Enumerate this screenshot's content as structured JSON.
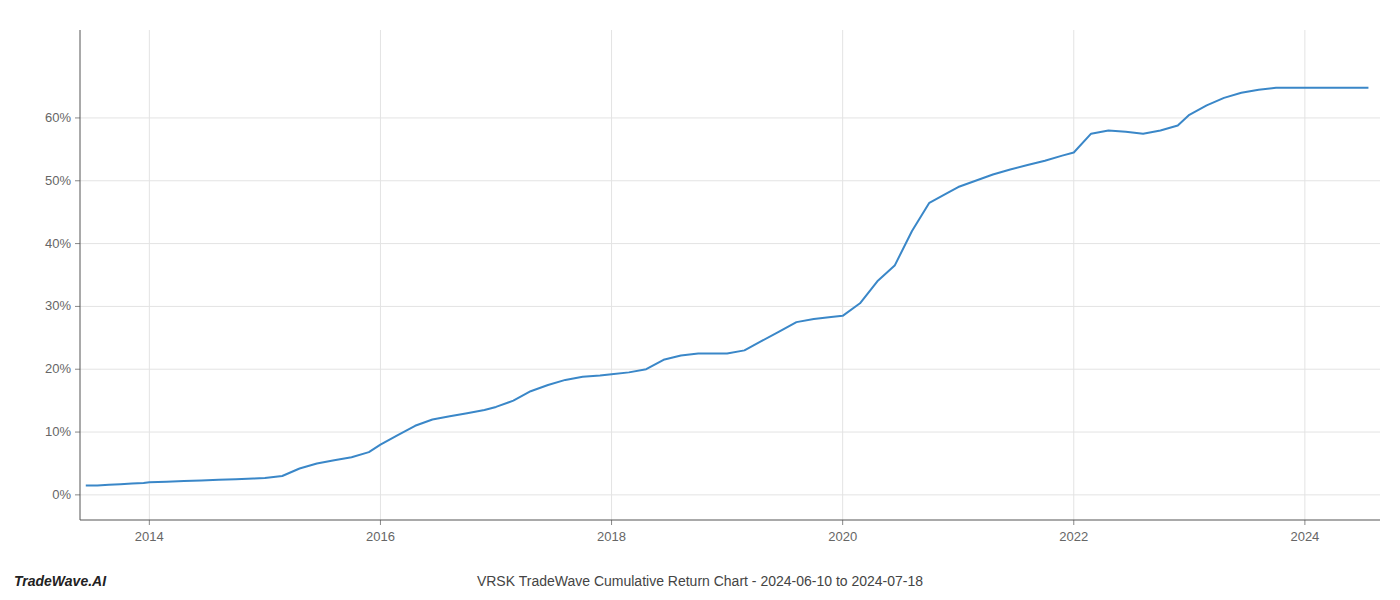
{
  "chart_data": {
    "type": "line",
    "title": "VRSK TradeWave Cumulative Return Chart - 2024-06-10 to 2024-07-18",
    "annotations": [
      "TradeWave.AI"
    ],
    "color": "#3a87c8",
    "grid": true,
    "x": [
      2013.45,
      2013.55,
      2013.65,
      2013.75,
      2013.85,
      2013.95,
      2014.0,
      2014.15,
      2014.3,
      2014.45,
      2014.6,
      2014.75,
      2014.9,
      2015.0,
      2015.15,
      2015.3,
      2015.45,
      2015.6,
      2015.75,
      2015.9,
      2016.0,
      2016.15,
      2016.3,
      2016.45,
      2016.6,
      2016.75,
      2016.9,
      2017.0,
      2017.15,
      2017.3,
      2017.45,
      2017.6,
      2017.75,
      2017.9,
      2018.0,
      2018.15,
      2018.3,
      2018.45,
      2018.6,
      2018.75,
      2018.9,
      2019.0,
      2019.15,
      2019.3,
      2019.45,
      2019.6,
      2019.75,
      2019.9,
      2020.0,
      2020.15,
      2020.3,
      2020.45,
      2020.6,
      2020.75,
      2020.9,
      2021.0,
      2021.15,
      2021.3,
      2021.45,
      2021.6,
      2021.75,
      2021.9,
      2022.0,
      2022.15,
      2022.3,
      2022.45,
      2022.6,
      2022.75,
      2022.9,
      2023.0,
      2023.15,
      2023.3,
      2023.45,
      2023.6,
      2023.75,
      2023.9,
      2024.0,
      2024.15,
      2024.3,
      2024.45,
      2024.55
    ],
    "values": [
      1.5,
      1.5,
      1.6,
      1.7,
      1.8,
      1.9,
      2.0,
      2.1,
      2.2,
      2.3,
      2.4,
      2.5,
      2.6,
      2.7,
      3.0,
      4.2,
      5.0,
      5.5,
      6.0,
      6.8,
      8.0,
      9.5,
      11.0,
      12.0,
      12.5,
      13.0,
      13.5,
      14.0,
      15.0,
      16.5,
      17.5,
      18.3,
      18.8,
      19.0,
      19.2,
      19.5,
      20.0,
      21.5,
      22.2,
      22.5,
      22.5,
      22.5,
      23.0,
      24.5,
      26.0,
      27.5,
      28.0,
      28.3,
      28.5,
      30.5,
      34.0,
      36.5,
      42.0,
      46.5,
      48.0,
      49.0,
      50.0,
      51.0,
      51.8,
      52.5,
      53.2,
      54.0,
      54.5,
      57.5,
      58.0,
      57.8,
      57.5,
      58.0,
      58.8,
      60.5,
      62.0,
      63.2,
      64.0,
      64.5,
      64.8,
      64.8,
      64.8,
      64.8,
      64.8,
      64.8,
      64.8
    ],
    "xlim": [
      2013.4,
      2024.65
    ],
    "ylim": [
      -4,
      74
    ],
    "xticks": [
      2014,
      2016,
      2018,
      2020,
      2022,
      2024
    ],
    "yticks": [
      {
        "value": 0,
        "label": "0%"
      },
      {
        "value": 10,
        "label": "10%"
      },
      {
        "value": 20,
        "label": "20%"
      },
      {
        "value": 30,
        "label": "30%"
      },
      {
        "value": 40,
        "label": "40%"
      },
      {
        "value": 50,
        "label": "50%"
      },
      {
        "value": 60,
        "label": "60%"
      }
    ]
  }
}
